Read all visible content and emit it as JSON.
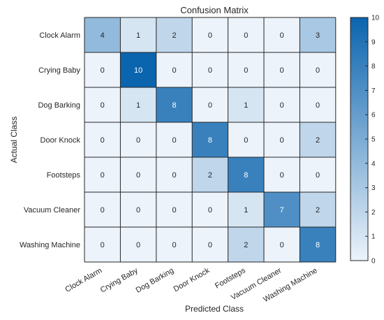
{
  "chart_data": {
    "type": "heatmap",
    "title": "Confusion Matrix",
    "xlabel": "Predicted Class",
    "ylabel": "Actual Class",
    "x_categories": [
      "Clock Alarm",
      "Crying Baby",
      "Dog Barking",
      "Door Knock",
      "Footsteps",
      "Vacuum Cleaner",
      "Washing Machine"
    ],
    "y_categories": [
      "Clock Alarm",
      "Crying Baby",
      "Dog Barking",
      "Door Knock",
      "Footsteps",
      "Vacuum Cleaner",
      "Washing Machine"
    ],
    "values": [
      [
        4,
        1,
        2,
        0,
        0,
        0,
        3
      ],
      [
        0,
        10,
        0,
        0,
        0,
        0,
        0
      ],
      [
        0,
        1,
        8,
        0,
        1,
        0,
        0
      ],
      [
        0,
        0,
        0,
        8,
        0,
        0,
        2
      ],
      [
        0,
        0,
        0,
        2,
        8,
        0,
        0
      ],
      [
        0,
        0,
        0,
        0,
        1,
        7,
        2
      ],
      [
        0,
        0,
        0,
        0,
        2,
        0,
        8
      ]
    ],
    "colorbar": {
      "min": 0,
      "max": 10,
      "ticks": [
        0,
        1,
        2,
        3,
        4,
        5,
        6,
        7,
        8,
        9,
        10
      ],
      "color_low": "#ecf3fa",
      "color_high": "#0b64ae"
    },
    "grid": true,
    "legend": "right"
  }
}
